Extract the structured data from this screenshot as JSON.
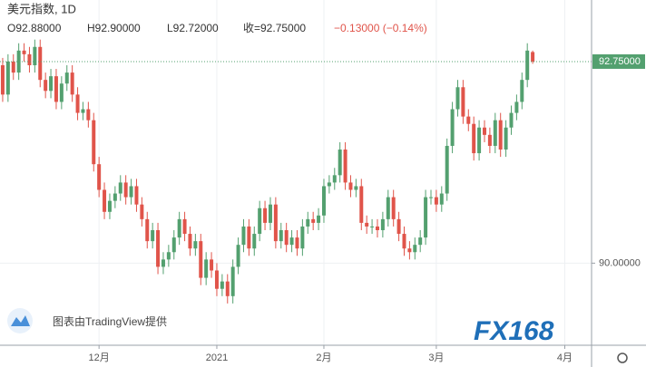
{
  "chart_data": {
    "type": "candlestick",
    "title": "美元指数, 1D",
    "ohlc_open": "O92.88000",
    "ohlc_high": "H92.90000",
    "ohlc_low": "L92.72000",
    "ohlc_close": "收=92.75000",
    "ohlc_change": "−0.13000 (−0.14%)",
    "credit": "图表由TradingView提供",
    "logo": "FX168",
    "up_color": "#53a06f",
    "down_color": "#e0544a",
    "grid": true,
    "xlim": [
      -0.5,
      110
    ],
    "xticks": [
      {
        "value": 18,
        "label": "12月"
      },
      {
        "value": 40,
        "label": "2021"
      },
      {
        "value": 60,
        "label": "2月"
      },
      {
        "value": 81,
        "label": "3月"
      },
      {
        "value": 105,
        "label": "4月"
      }
    ],
    "ylim": [
      88.88,
      93.59
    ],
    "yticks": [
      {
        "value": 90,
        "label": "90.00000"
      }
    ],
    "last_price": {
      "value": 92.75,
      "label": "92.75000"
    },
    "open": [
      92.7,
      92.3,
      92.75,
      92.6,
      92.9,
      92.85,
      92.7,
      92.95,
      92.5,
      92.35,
      92.55,
      92.2,
      92.45,
      92.6,
      92.3,
      92.05,
      92.1,
      91.95,
      91.35,
      91.0,
      90.7,
      90.85,
      90.95,
      91.1,
      90.9,
      91.05,
      90.8,
      90.6,
      90.3,
      90.45,
      89.95,
      90.05,
      90.15,
      90.35,
      90.6,
      90.4,
      90.2,
      90.3,
      89.8,
      90.05,
      89.9,
      89.65,
      89.75,
      89.55,
      89.95,
      90.25,
      90.5,
      90.2,
      90.4,
      90.75,
      90.55,
      90.8,
      90.3,
      90.45,
      90.25,
      90.35,
      90.2,
      90.5,
      90.6,
      90.55,
      90.65,
      91.05,
      91.1,
      91.2,
      91.55,
      91.1,
      91.0,
      91.05,
      90.55,
      90.5,
      90.5,
      90.45,
      90.6,
      90.9,
      90.6,
      90.4,
      90.2,
      90.15,
      90.25,
      90.35,
      90.9,
      90.9,
      90.8,
      90.95,
      91.6,
      92.1,
      92.4,
      92.0,
      91.9,
      91.5,
      91.85,
      91.75,
      91.6,
      91.95,
      91.55,
      91.85,
      92.05,
      92.2,
      92.5,
      92.88
    ],
    "high": [
      92.8,
      92.85,
      92.85,
      93.0,
      93.0,
      92.95,
      93.05,
      93.05,
      92.6,
      92.65,
      92.65,
      92.55,
      92.7,
      92.7,
      92.4,
      92.2,
      92.2,
      92.05,
      91.45,
      91.1,
      90.95,
      91.05,
      91.2,
      91.2,
      91.15,
      91.15,
      90.9,
      90.7,
      90.55,
      90.55,
      90.15,
      90.25,
      90.45,
      90.7,
      90.7,
      90.5,
      90.4,
      90.4,
      90.15,
      90.15,
      90.0,
      89.85,
      89.85,
      90.05,
      90.35,
      90.6,
      90.6,
      90.5,
      90.85,
      90.85,
      90.9,
      90.9,
      90.55,
      90.55,
      90.45,
      90.45,
      90.6,
      90.7,
      90.7,
      90.75,
      91.15,
      91.2,
      91.3,
      91.65,
      91.65,
      91.2,
      91.15,
      91.15,
      90.65,
      90.6,
      90.6,
      90.7,
      91.0,
      91.0,
      90.7,
      90.5,
      90.3,
      90.35,
      90.45,
      91.0,
      91.0,
      91.0,
      91.05,
      91.7,
      92.2,
      92.5,
      92.5,
      92.1,
      92.0,
      91.95,
      91.95,
      91.85,
      92.05,
      92.05,
      91.95,
      92.15,
      92.3,
      92.6,
      93.0,
      92.9
    ],
    "low": [
      92.2,
      92.2,
      92.5,
      92.5,
      92.75,
      92.6,
      92.6,
      92.4,
      92.25,
      92.25,
      92.1,
      92.1,
      92.35,
      92.2,
      91.95,
      91.95,
      91.85,
      91.25,
      90.9,
      90.6,
      90.6,
      90.75,
      90.85,
      90.8,
      90.8,
      90.7,
      90.5,
      90.2,
      90.2,
      89.85,
      89.85,
      89.95,
      90.05,
      90.25,
      90.3,
      90.1,
      90.1,
      89.7,
      89.7,
      89.8,
      89.55,
      89.55,
      89.45,
      89.45,
      89.85,
      90.15,
      90.1,
      90.1,
      90.3,
      90.45,
      90.45,
      90.2,
      90.2,
      90.15,
      90.15,
      90.1,
      90.1,
      90.4,
      90.45,
      90.45,
      90.55,
      90.95,
      91.0,
      91.1,
      91.0,
      90.9,
      90.9,
      90.45,
      90.4,
      90.4,
      90.35,
      90.35,
      90.5,
      90.5,
      90.3,
      90.1,
      90.05,
      90.05,
      90.15,
      90.25,
      90.8,
      90.7,
      90.7,
      90.85,
      91.5,
      92.0,
      91.9,
      91.8,
      91.4,
      91.4,
      91.65,
      91.5,
      91.5,
      91.45,
      91.45,
      91.75,
      91.95,
      92.1,
      92.4,
      92.72
    ],
    "close": [
      92.3,
      92.75,
      92.6,
      92.9,
      92.85,
      92.7,
      92.95,
      92.5,
      92.35,
      92.55,
      92.2,
      92.45,
      92.6,
      92.3,
      92.05,
      92.1,
      91.95,
      91.35,
      91.0,
      90.7,
      90.85,
      90.95,
      91.1,
      90.9,
      91.05,
      90.8,
      90.6,
      90.3,
      90.45,
      89.95,
      90.05,
      90.15,
      90.35,
      90.6,
      90.4,
      90.2,
      90.3,
      89.8,
      90.05,
      89.9,
      89.65,
      89.75,
      89.55,
      89.95,
      90.25,
      90.5,
      90.2,
      90.4,
      90.75,
      90.55,
      90.8,
      90.3,
      90.45,
      90.25,
      90.35,
      90.2,
      90.5,
      90.6,
      90.55,
      90.65,
      91.05,
      91.1,
      91.2,
      91.55,
      91.1,
      91.0,
      91.05,
      90.55,
      90.5,
      90.5,
      90.45,
      90.6,
      90.9,
      90.6,
      90.4,
      90.2,
      90.15,
      90.25,
      90.35,
      90.9,
      90.9,
      90.8,
      90.95,
      91.6,
      92.1,
      92.4,
      92.0,
      91.9,
      91.5,
      91.85,
      91.75,
      91.6,
      91.95,
      91.55,
      91.85,
      92.05,
      92.2,
      92.5,
      92.9,
      92.75
    ]
  }
}
